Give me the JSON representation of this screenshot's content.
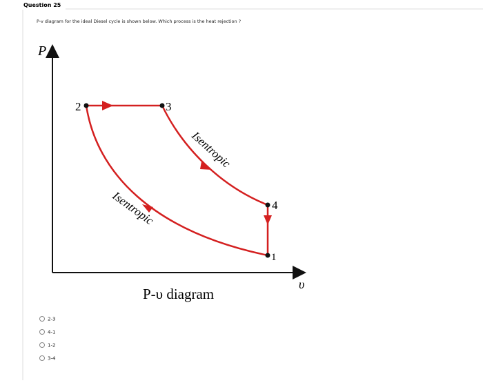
{
  "question": {
    "title": "Question 25",
    "text": "P-v diagram for the ideal Diesel cycle is shown below. Which process is the heat rejection ?"
  },
  "diagram": {
    "y_axis_label": "P",
    "x_axis_label": "υ",
    "caption": "P-υ diagram",
    "points": [
      "2",
      "3",
      "4",
      "1"
    ],
    "process_labels": [
      "Isentropic",
      "Isentropic"
    ]
  },
  "options": [
    "2-3",
    "4-1",
    "1-2",
    "3-4"
  ]
}
